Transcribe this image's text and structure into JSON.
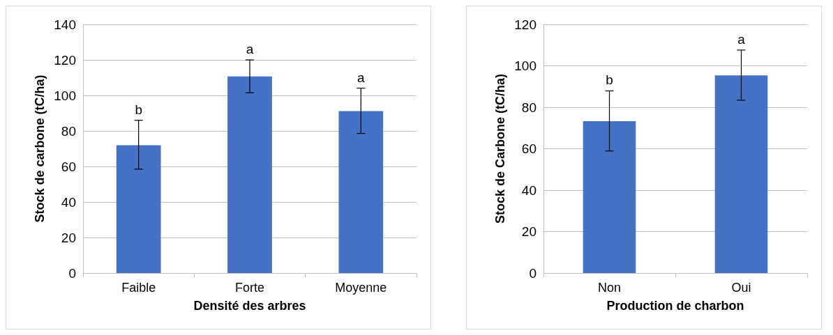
{
  "chart_data": [
    {
      "type": "bar",
      "xlabel": "Densité des arbres",
      "ylabel": "Stock de carbone (tC/ha)",
      "categories": [
        "Faible",
        "Forte",
        "Moyenne"
      ],
      "values": [
        72,
        110.7,
        91.2
      ],
      "color": "#4472c4",
      "errors": [
        [
          58.5,
          86
        ],
        [
          101.5,
          120
        ],
        [
          78.6,
          104.1
        ]
      ],
      "ylim": [
        0,
        140
      ],
      "yticks": [
        0,
        20,
        40,
        60,
        80,
        100,
        120,
        140
      ],
      "grid": "y",
      "annotations": [
        {
          "text": "b",
          "x": "Faible",
          "y": 86
        },
        {
          "text": "a",
          "x": "Forte",
          "y": 120
        },
        {
          "text": "a",
          "x": "Moyenne",
          "y": 104.1
        }
      ]
    },
    {
      "type": "bar",
      "xlabel": "Production de charbon",
      "ylabel": "Stock de Carbone (tC/ha)",
      "categories": [
        "Non",
        "Oui"
      ],
      "values": [
        73.3,
        95.4
      ],
      "color": "#4472c4",
      "errors": [
        [
          58.9,
          87.9
        ],
        [
          83.4,
          107.6
        ]
      ],
      "ylim": [
        0,
        120
      ],
      "yticks": [
        0,
        20,
        40,
        60,
        80,
        100,
        120
      ],
      "grid": "y",
      "annotations": [
        {
          "text": "b",
          "x": "Non",
          "y": 87.9
        },
        {
          "text": "a",
          "x": "Oui",
          "y": 107.6
        }
      ]
    }
  ]
}
